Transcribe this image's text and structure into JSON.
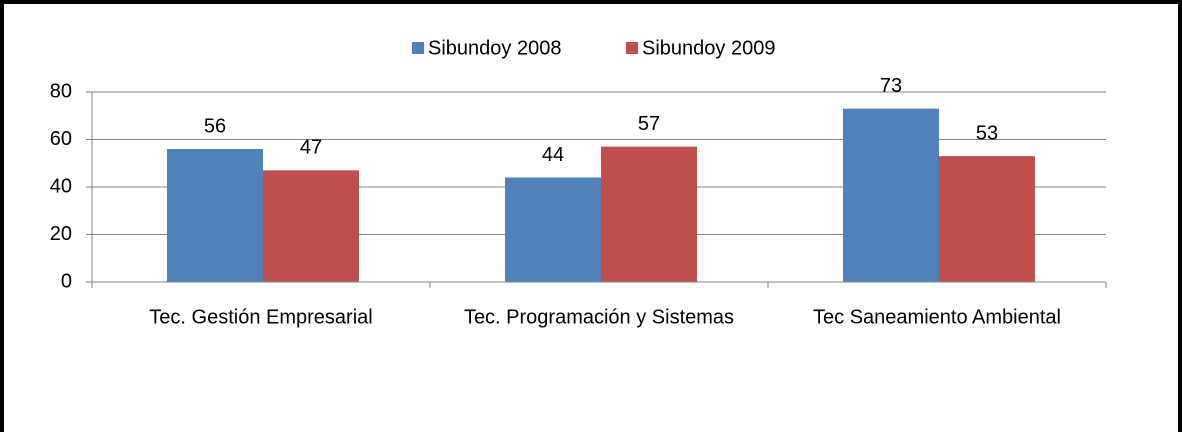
{
  "chart_data": {
    "type": "bar",
    "categories": [
      "Tec. Gestión Empresarial",
      "Tec. Programación y Sistemas",
      "Tec Saneamiento Ambiental"
    ],
    "series": [
      {
        "name": "Sibundoy 2008",
        "color": "#4f81bd",
        "values": [
          56,
          44,
          73
        ]
      },
      {
        "name": "Sibundoy 2009",
        "color": "#c0504d",
        "values": [
          47,
          57,
          53
        ]
      }
    ],
    "ylim": [
      0,
      80
    ],
    "yticks": [
      0,
      20,
      40,
      60,
      80
    ],
    "grid": true,
    "legend": "top"
  }
}
